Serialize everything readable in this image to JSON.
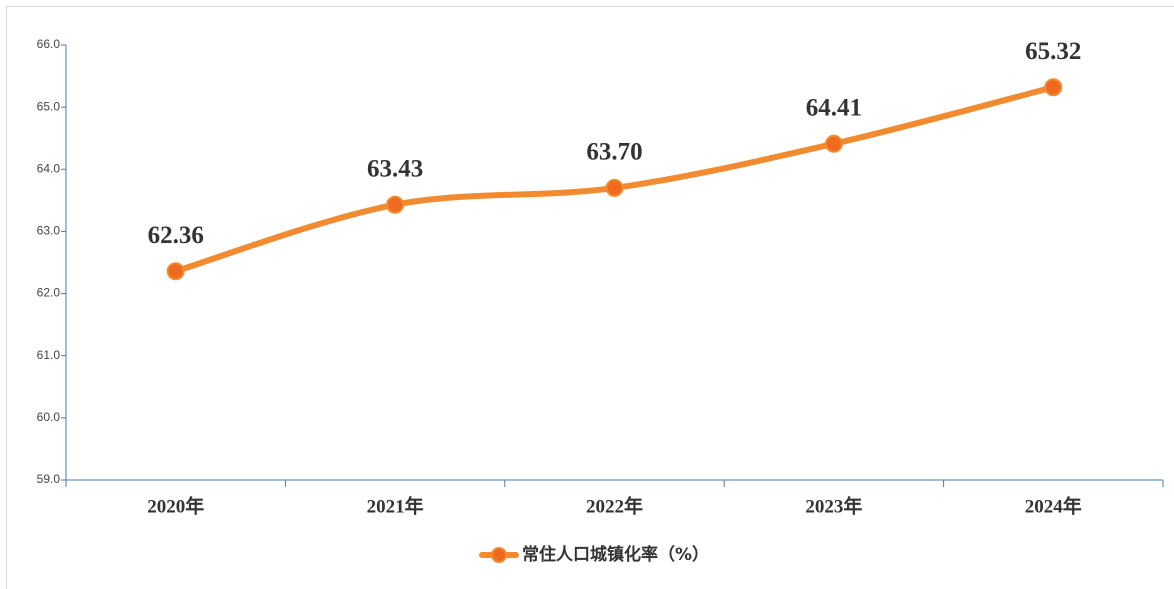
{
  "chart_data": {
    "type": "line",
    "categories": [
      "2020年",
      "2021年",
      "2022年",
      "2023年",
      "2024年"
    ],
    "series": [
      {
        "name": "常住人口城镇化率（%）",
        "color": "#f28a30",
        "marker_color": "#ef6a1f",
        "values": [
          62.36,
          63.43,
          63.7,
          64.41,
          65.32
        ],
        "value_labels": [
          "62.36",
          "63.43",
          "63.70",
          "64.41",
          "65.32"
        ]
      }
    ],
    "ylim": [
      59,
      66
    ],
    "yticks": [
      {
        "value": 59,
        "label": "59.0"
      },
      {
        "value": 60,
        "label": "60.0"
      },
      {
        "value": 61,
        "label": "61.0"
      },
      {
        "value": 62,
        "label": "62.0"
      },
      {
        "value": 63,
        "label": "63.0"
      },
      {
        "value": 64,
        "label": "64.0"
      },
      {
        "value": 65,
        "label": "65.0"
      },
      {
        "value": 66,
        "label": "66.0"
      }
    ],
    "grid": false,
    "smooth": true,
    "legend": "bottom"
  }
}
